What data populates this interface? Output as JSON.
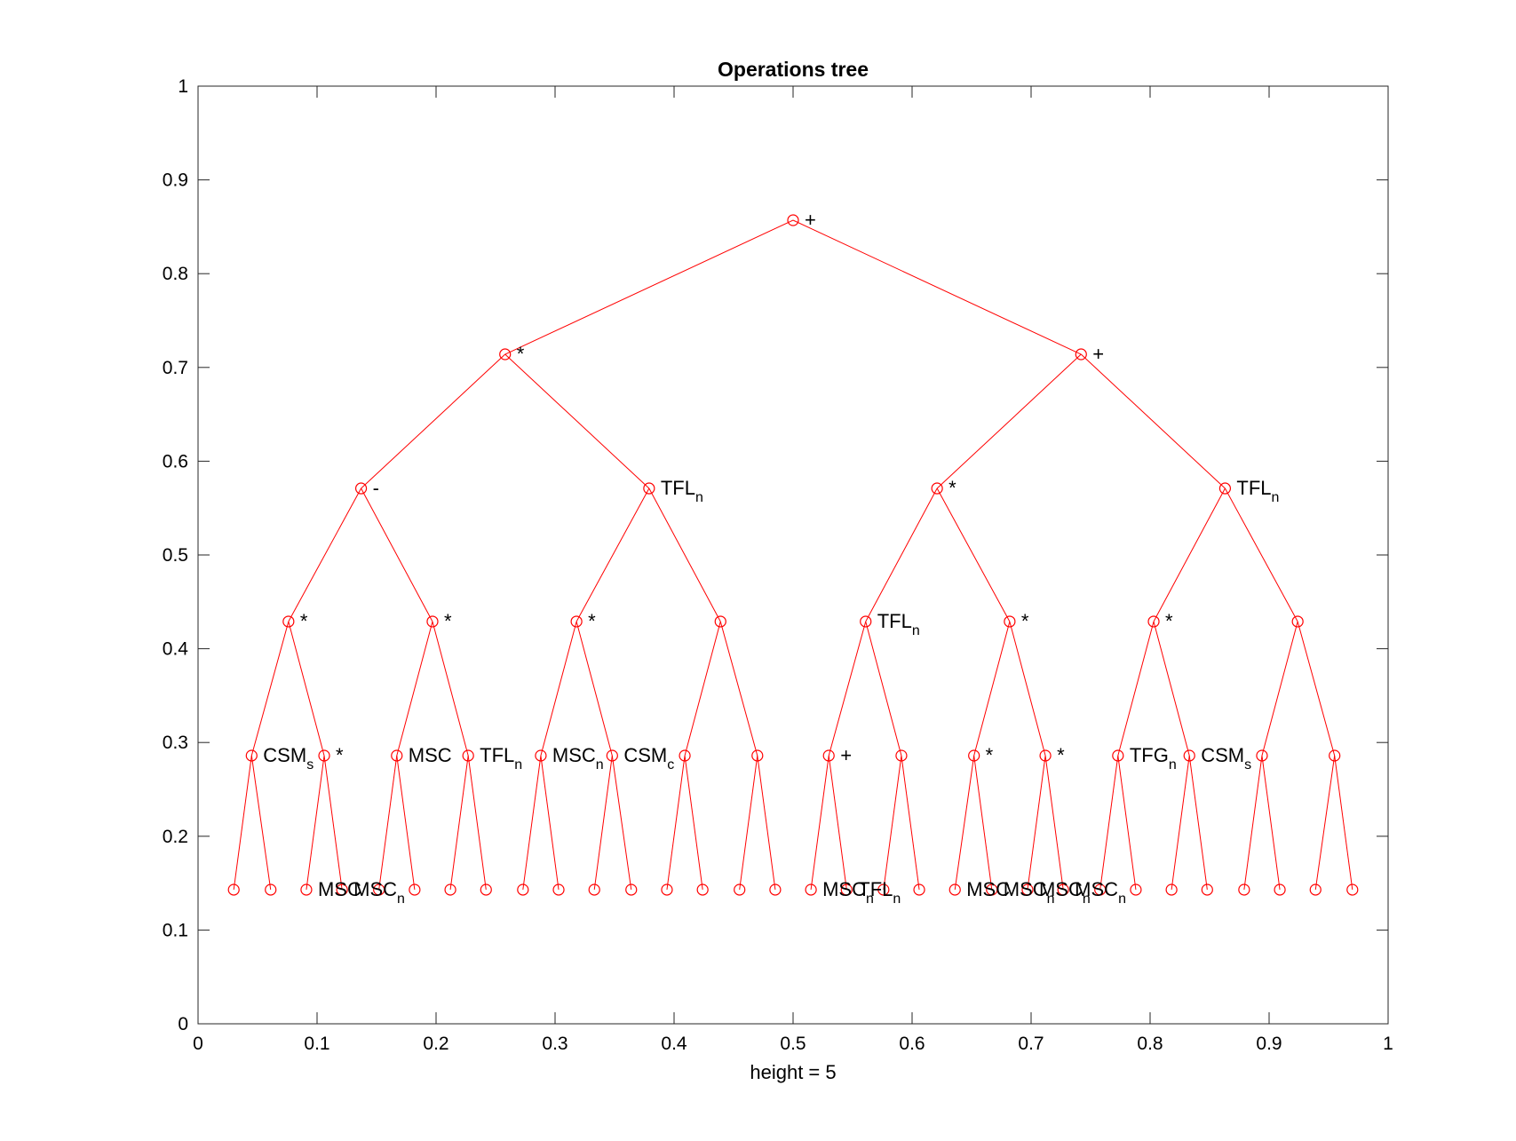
{
  "chart_data": {
    "type": "scatter",
    "title": "Operations tree",
    "xlabel": "height = 5",
    "ylabel": "",
    "xlim": [
      0,
      1
    ],
    "ylim": [
      0,
      1
    ],
    "xticks": [
      0,
      0.1,
      0.2,
      0.3,
      0.4,
      0.5,
      0.6,
      0.7,
      0.8,
      0.9,
      1
    ],
    "xtick_labels": [
      "0",
      "0.1",
      "0.2",
      "0.3",
      "0.4",
      "0.5",
      "0.6",
      "0.7",
      "0.8",
      "0.9",
      "1"
    ],
    "yticks": [
      0,
      0.1,
      0.2,
      0.3,
      0.4,
      0.5,
      0.6,
      0.7,
      0.8,
      0.9,
      1
    ],
    "ytick_labels": [
      "0",
      "0.1",
      "0.2",
      "0.3",
      "0.4",
      "0.5",
      "0.6",
      "0.7",
      "0.8",
      "0.9",
      "1"
    ],
    "grid": false,
    "color": "#ff0000",
    "marker": "circle",
    "levels_y": [
      0.857,
      0.714,
      0.571,
      0.429,
      0.286,
      0.143
    ],
    "nodes": [
      {
        "id": "n0",
        "x": 0.5,
        "y": 0.857,
        "label": "+",
        "sub": ""
      },
      {
        "id": "n1",
        "x": 0.258,
        "y": 0.714,
        "label": "*",
        "sub": "",
        "parent": "n0"
      },
      {
        "id": "n2",
        "x": 0.742,
        "y": 0.714,
        "label": "+",
        "sub": "",
        "parent": "n0"
      },
      {
        "id": "n3",
        "x": 0.137,
        "y": 0.571,
        "label": "-",
        "sub": "",
        "parent": "n1"
      },
      {
        "id": "n4",
        "x": 0.379,
        "y": 0.571,
        "label": "TFL",
        "sub": "n",
        "parent": "n1"
      },
      {
        "id": "n5",
        "x": 0.621,
        "y": 0.571,
        "label": "*",
        "sub": "",
        "parent": "n2"
      },
      {
        "id": "n6",
        "x": 0.863,
        "y": 0.571,
        "label": "TFL",
        "sub": "n",
        "parent": "n2"
      },
      {
        "id": "n7",
        "x": 0.076,
        "y": 0.429,
        "label": "*",
        "sub": "",
        "parent": "n3"
      },
      {
        "id": "n8",
        "x": 0.197,
        "y": 0.429,
        "label": "*",
        "sub": "",
        "parent": "n3"
      },
      {
        "id": "n9",
        "x": 0.318,
        "y": 0.429,
        "label": "*",
        "sub": "",
        "parent": "n4"
      },
      {
        "id": "n10",
        "x": 0.439,
        "y": 0.429,
        "label": "",
        "sub": "",
        "parent": "n4"
      },
      {
        "id": "n11",
        "x": 0.561,
        "y": 0.429,
        "label": "TFL",
        "sub": "n",
        "parent": "n5"
      },
      {
        "id": "n12",
        "x": 0.682,
        "y": 0.429,
        "label": "*",
        "sub": "",
        "parent": "n5"
      },
      {
        "id": "n13",
        "x": 0.803,
        "y": 0.429,
        "label": "*",
        "sub": "",
        "parent": "n6"
      },
      {
        "id": "n14",
        "x": 0.924,
        "y": 0.429,
        "label": "",
        "sub": "",
        "parent": "n6"
      },
      {
        "id": "n15",
        "x": 0.045,
        "y": 0.286,
        "label": "CSM",
        "sub": "s",
        "parent": "n7"
      },
      {
        "id": "n16",
        "x": 0.106,
        "y": 0.286,
        "label": "*",
        "sub": "",
        "parent": "n7"
      },
      {
        "id": "n17",
        "x": 0.167,
        "y": 0.286,
        "label": "MSC",
        "sub": "",
        "parent": "n8"
      },
      {
        "id": "n18",
        "x": 0.227,
        "y": 0.286,
        "label": "TFL",
        "sub": "n",
        "parent": "n8"
      },
      {
        "id": "n19",
        "x": 0.288,
        "y": 0.286,
        "label": "MSC",
        "sub": "n",
        "parent": "n9"
      },
      {
        "id": "n20",
        "x": 0.348,
        "y": 0.286,
        "label": "CSM",
        "sub": "c",
        "parent": "n9"
      },
      {
        "id": "n21",
        "x": 0.409,
        "y": 0.286,
        "label": "",
        "sub": "",
        "parent": "n10"
      },
      {
        "id": "n22",
        "x": 0.47,
        "y": 0.286,
        "label": "",
        "sub": "",
        "parent": "n10"
      },
      {
        "id": "n23",
        "x": 0.53,
        "y": 0.286,
        "label": "+",
        "sub": "",
        "parent": "n11"
      },
      {
        "id": "n24",
        "x": 0.591,
        "y": 0.286,
        "label": "",
        "sub": "",
        "parent": "n11"
      },
      {
        "id": "n25",
        "x": 0.652,
        "y": 0.286,
        "label": "*",
        "sub": "",
        "parent": "n12"
      },
      {
        "id": "n26",
        "x": 0.712,
        "y": 0.286,
        "label": "*",
        "sub": "",
        "parent": "n12"
      },
      {
        "id": "n27",
        "x": 0.773,
        "y": 0.286,
        "label": "TFG",
        "sub": "n",
        "parent": "n13"
      },
      {
        "id": "n28",
        "x": 0.833,
        "y": 0.286,
        "label": "CSM",
        "sub": "s",
        "parent": "n13"
      },
      {
        "id": "n29",
        "x": 0.894,
        "y": 0.286,
        "label": "",
        "sub": "",
        "parent": "n14"
      },
      {
        "id": "n30",
        "x": 0.955,
        "y": 0.286,
        "label": "",
        "sub": "",
        "parent": "n14"
      },
      {
        "id": "n31",
        "x": 0.03,
        "y": 0.143,
        "label": "",
        "sub": "",
        "parent": "n15"
      },
      {
        "id": "n32",
        "x": 0.061,
        "y": 0.143,
        "label": "",
        "sub": "",
        "parent": "n15"
      },
      {
        "id": "n33",
        "x": 0.091,
        "y": 0.143,
        "label": "MSC",
        "sub": "",
        "parent": "n16"
      },
      {
        "id": "n34",
        "x": 0.121,
        "y": 0.143,
        "label": "MSC",
        "sub": "n",
        "parent": "n16"
      },
      {
        "id": "n35",
        "x": 0.152,
        "y": 0.143,
        "label": "",
        "sub": "",
        "parent": "n17"
      },
      {
        "id": "n36",
        "x": 0.182,
        "y": 0.143,
        "label": "",
        "sub": "",
        "parent": "n17"
      },
      {
        "id": "n37",
        "x": 0.212,
        "y": 0.143,
        "label": "",
        "sub": "",
        "parent": "n18"
      },
      {
        "id": "n38",
        "x": 0.242,
        "y": 0.143,
        "label": "",
        "sub": "",
        "parent": "n18"
      },
      {
        "id": "n39",
        "x": 0.273,
        "y": 0.143,
        "label": "",
        "sub": "",
        "parent": "n19"
      },
      {
        "id": "n40",
        "x": 0.303,
        "y": 0.143,
        "label": "",
        "sub": "",
        "parent": "n19"
      },
      {
        "id": "n41",
        "x": 0.333,
        "y": 0.143,
        "label": "",
        "sub": "",
        "parent": "n20"
      },
      {
        "id": "n42",
        "x": 0.364,
        "y": 0.143,
        "label": "",
        "sub": "",
        "parent": "n20"
      },
      {
        "id": "n43",
        "x": 0.394,
        "y": 0.143,
        "label": "",
        "sub": "",
        "parent": "n21"
      },
      {
        "id": "n44",
        "x": 0.424,
        "y": 0.143,
        "label": "",
        "sub": "",
        "parent": "n21"
      },
      {
        "id": "n45",
        "x": 0.455,
        "y": 0.143,
        "label": "",
        "sub": "",
        "parent": "n22"
      },
      {
        "id": "n46",
        "x": 0.485,
        "y": 0.143,
        "label": "",
        "sub": "",
        "parent": "n22"
      },
      {
        "id": "n47",
        "x": 0.515,
        "y": 0.143,
        "label": "MSC",
        "sub": "n",
        "parent": "n23"
      },
      {
        "id": "n48",
        "x": 0.545,
        "y": 0.143,
        "label": "TFL",
        "sub": "n",
        "parent": "n23"
      },
      {
        "id": "n49",
        "x": 0.576,
        "y": 0.143,
        "label": "",
        "sub": "",
        "parent": "n24"
      },
      {
        "id": "n50",
        "x": 0.606,
        "y": 0.143,
        "label": "",
        "sub": "",
        "parent": "n24"
      },
      {
        "id": "n51",
        "x": 0.636,
        "y": 0.143,
        "label": "MSC",
        "sub": "",
        "parent": "n25"
      },
      {
        "id": "n52",
        "x": 0.667,
        "y": 0.143,
        "label": "MSC",
        "sub": "n",
        "parent": "n25"
      },
      {
        "id": "n53",
        "x": 0.697,
        "y": 0.143,
        "label": "MSC",
        "sub": "n",
        "parent": "n26"
      },
      {
        "id": "n54",
        "x": 0.727,
        "y": 0.143,
        "label": "MSC",
        "sub": "n",
        "parent": "n26"
      },
      {
        "id": "n55",
        "x": 0.758,
        "y": 0.143,
        "label": "",
        "sub": "",
        "parent": "n27"
      },
      {
        "id": "n56",
        "x": 0.788,
        "y": 0.143,
        "label": "",
        "sub": "",
        "parent": "n27"
      },
      {
        "id": "n57",
        "x": 0.818,
        "y": 0.143,
        "label": "",
        "sub": "",
        "parent": "n28"
      },
      {
        "id": "n58",
        "x": 0.848,
        "y": 0.143,
        "label": "",
        "sub": "",
        "parent": "n28"
      },
      {
        "id": "n59",
        "x": 0.879,
        "y": 0.143,
        "label": "",
        "sub": "",
        "parent": "n29"
      },
      {
        "id": "n60",
        "x": 0.909,
        "y": 0.143,
        "label": "",
        "sub": "",
        "parent": "n29"
      },
      {
        "id": "n61",
        "x": 0.939,
        "y": 0.143,
        "label": "",
        "sub": "",
        "parent": "n30"
      },
      {
        "id": "n62",
        "x": 0.97,
        "y": 0.143,
        "label": "",
        "sub": "",
        "parent": "n30"
      }
    ]
  }
}
